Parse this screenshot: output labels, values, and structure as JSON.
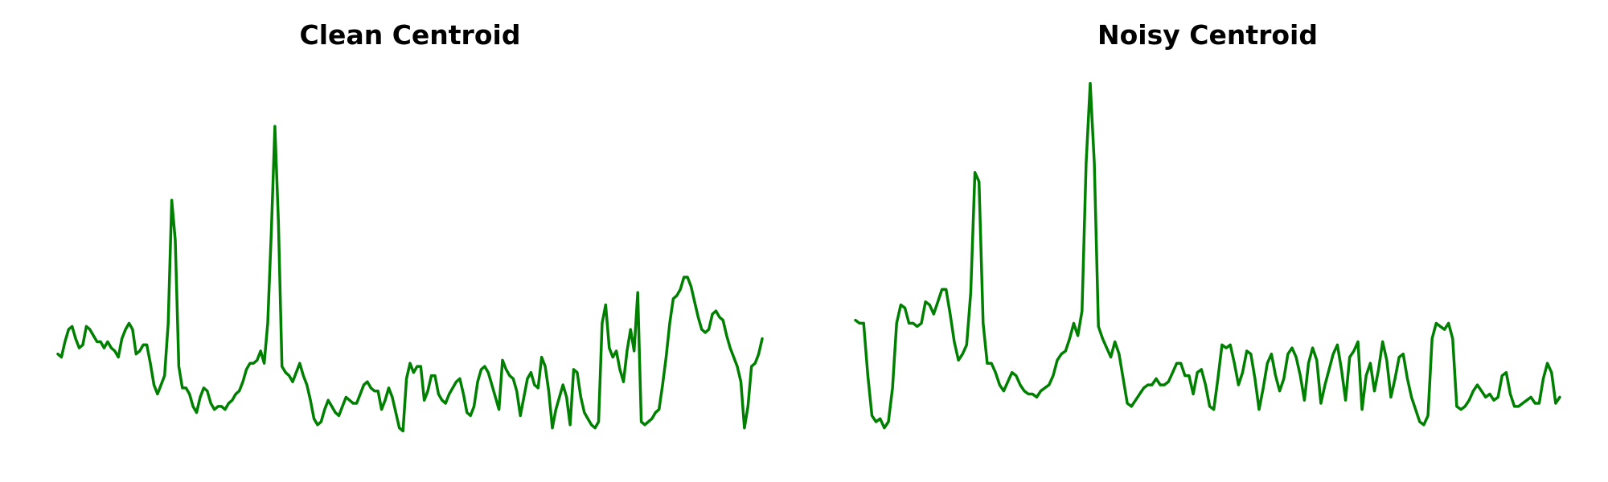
{
  "chart_data": [
    {
      "type": "line",
      "title": "Clean Centroid",
      "xlabel": "",
      "ylabel": "",
      "axes_visible": false,
      "grid": false,
      "line_color": "#008000",
      "x_range": [
        0,
        135
      ],
      "ylim": [
        -0.18,
        1.0
      ],
      "series": [
        {
          "values": [
            0.1,
            0.09,
            0.14,
            0.18,
            0.19,
            0.15,
            0.12,
            0.13,
            0.19,
            0.18,
            0.16,
            0.14,
            0.14,
            0.12,
            0.14,
            0.12,
            0.11,
            0.09,
            0.15,
            0.18,
            0.2,
            0.18,
            0.1,
            0.11,
            0.13,
            0.13,
            0.07,
            0.0,
            -0.03,
            0.0,
            0.03,
            0.2,
            0.6,
            0.47,
            0.06,
            -0.01,
            -0.01,
            -0.03,
            -0.07,
            -0.09,
            -0.04,
            -0.01,
            -0.02,
            -0.06,
            -0.08,
            -0.07,
            -0.07,
            -0.08,
            -0.06,
            -0.05,
            -0.03,
            -0.02,
            0.01,
            0.05,
            0.07,
            0.07,
            0.08,
            0.11,
            0.07,
            0.2,
            0.5,
            0.84,
            0.53,
            0.06,
            0.04,
            0.03,
            0.01,
            0.04,
            0.07,
            0.03,
            0.0,
            -0.05,
            -0.11,
            -0.13,
            -0.12,
            -0.08,
            -0.05,
            -0.07,
            -0.09,
            -0.1,
            -0.07,
            -0.04,
            -0.05,
            -0.06,
            -0.06,
            -0.03,
            0.0,
            0.01,
            -0.01,
            -0.02,
            -0.02,
            -0.08,
            -0.05,
            -0.01,
            -0.04,
            -0.09,
            -0.14,
            -0.15,
            0.02,
            0.07,
            0.04,
            0.06,
            0.06,
            -0.05,
            -0.02,
            0.03,
            0.03,
            -0.03,
            -0.05,
            -0.06,
            -0.03,
            -0.01,
            0.01,
            0.02,
            -0.03,
            -0.09,
            -0.1,
            -0.07,
            0.01,
            0.05,
            0.06,
            0.04,
            0.0,
            -0.04,
            -0.08,
            0.08,
            0.05,
            0.03,
            0.02,
            -0.02,
            -0.1,
            -0.04,
            0.02,
            0.04,
            0.0,
            -0.01,
            0.09,
            0.06,
            -0.02,
            -0.14,
            -0.08,
            -0.04,
            0.0,
            -0.04,
            -0.13,
            0.05,
            0.04,
            -0.04,
            -0.09,
            -0.11,
            -0.13,
            -0.14,
            -0.12,
            0.2,
            0.26,
            0.12,
            0.09,
            0.11,
            0.05,
            0.01,
            0.11,
            0.18,
            0.11,
            0.3,
            -0.12,
            -0.13,
            -0.12,
            -0.11,
            -0.09,
            -0.08,
            0.0,
            0.09,
            0.2,
            0.28,
            0.29,
            0.31,
            0.35,
            0.35,
            0.32,
            0.27,
            0.22,
            0.18,
            0.17,
            0.18,
            0.23,
            0.24,
            0.22,
            0.21,
            0.16,
            0.12,
            0.09,
            0.06,
            0.01,
            -0.14,
            -0.07,
            0.06,
            0.07,
            0.1,
            0.15
          ]
        }
      ]
    },
    {
      "type": "line",
      "title": "Noisy Centroid",
      "xlabel": "",
      "ylabel": "",
      "axes_visible": false,
      "grid": false,
      "line_color": "#008000",
      "x_range": [
        0,
        135
      ],
      "ylim": [
        -0.18,
        1.0
      ],
      "series": [
        {
          "values": [
            0.21,
            0.2,
            0.2,
            0.03,
            -0.1,
            -0.12,
            -0.11,
            -0.14,
            -0.12,
            -0.01,
            0.2,
            0.26,
            0.25,
            0.2,
            0.2,
            0.19,
            0.2,
            0.27,
            0.26,
            0.23,
            0.27,
            0.31,
            0.31,
            0.23,
            0.14,
            0.08,
            0.1,
            0.13,
            0.3,
            0.69,
            0.66,
            0.2,
            0.07,
            0.07,
            0.04,
            0.0,
            -0.02,
            0.01,
            0.04,
            0.03,
            0.0,
            -0.02,
            -0.03,
            -0.03,
            -0.04,
            -0.02,
            -0.01,
            0.0,
            0.03,
            0.08,
            0.1,
            0.11,
            0.15,
            0.2,
            0.16,
            0.24,
            0.72,
            0.98,
            0.72,
            0.19,
            0.15,
            0.12,
            0.09,
            0.14,
            0.1,
            0.02,
            -0.06,
            -0.07,
            -0.05,
            -0.03,
            -0.01,
            0.0,
            0.0,
            0.02,
            0.0,
            0.0,
            0.01,
            0.04,
            0.07,
            0.07,
            0.03,
            0.03,
            -0.03,
            0.04,
            0.05,
            0.0,
            -0.07,
            -0.08,
            0.02,
            0.13,
            0.12,
            0.13,
            0.07,
            0.0,
            0.04,
            0.11,
            0.1,
            0.02,
            -0.08,
            -0.01,
            0.07,
            0.1,
            0.03,
            -0.02,
            0.02,
            0.1,
            0.12,
            0.09,
            0.03,
            -0.05,
            0.07,
            0.12,
            0.08,
            -0.06,
            0.0,
            0.05,
            0.1,
            0.13,
            0.05,
            -0.05,
            0.09,
            0.11,
            0.14,
            -0.08,
            0.03,
            0.07,
            -0.02,
            0.05,
            0.14,
            0.08,
            -0.04,
            0.02,
            0.09,
            0.1,
            0.02,
            -0.04,
            -0.08,
            -0.12,
            -0.13,
            -0.1,
            0.15,
            0.2,
            0.19,
            0.18,
            0.2,
            0.15,
            -0.07,
            -0.08,
            -0.07,
            -0.05,
            -0.02,
            0.0,
            -0.02,
            -0.04,
            -0.03,
            -0.05,
            -0.04,
            0.03,
            0.04,
            -0.03,
            -0.07,
            -0.07,
            -0.06,
            -0.05,
            -0.04,
            -0.06,
            -0.06,
            0.02,
            0.07,
            0.04,
            -0.06,
            -0.04
          ]
        }
      ]
    }
  ]
}
